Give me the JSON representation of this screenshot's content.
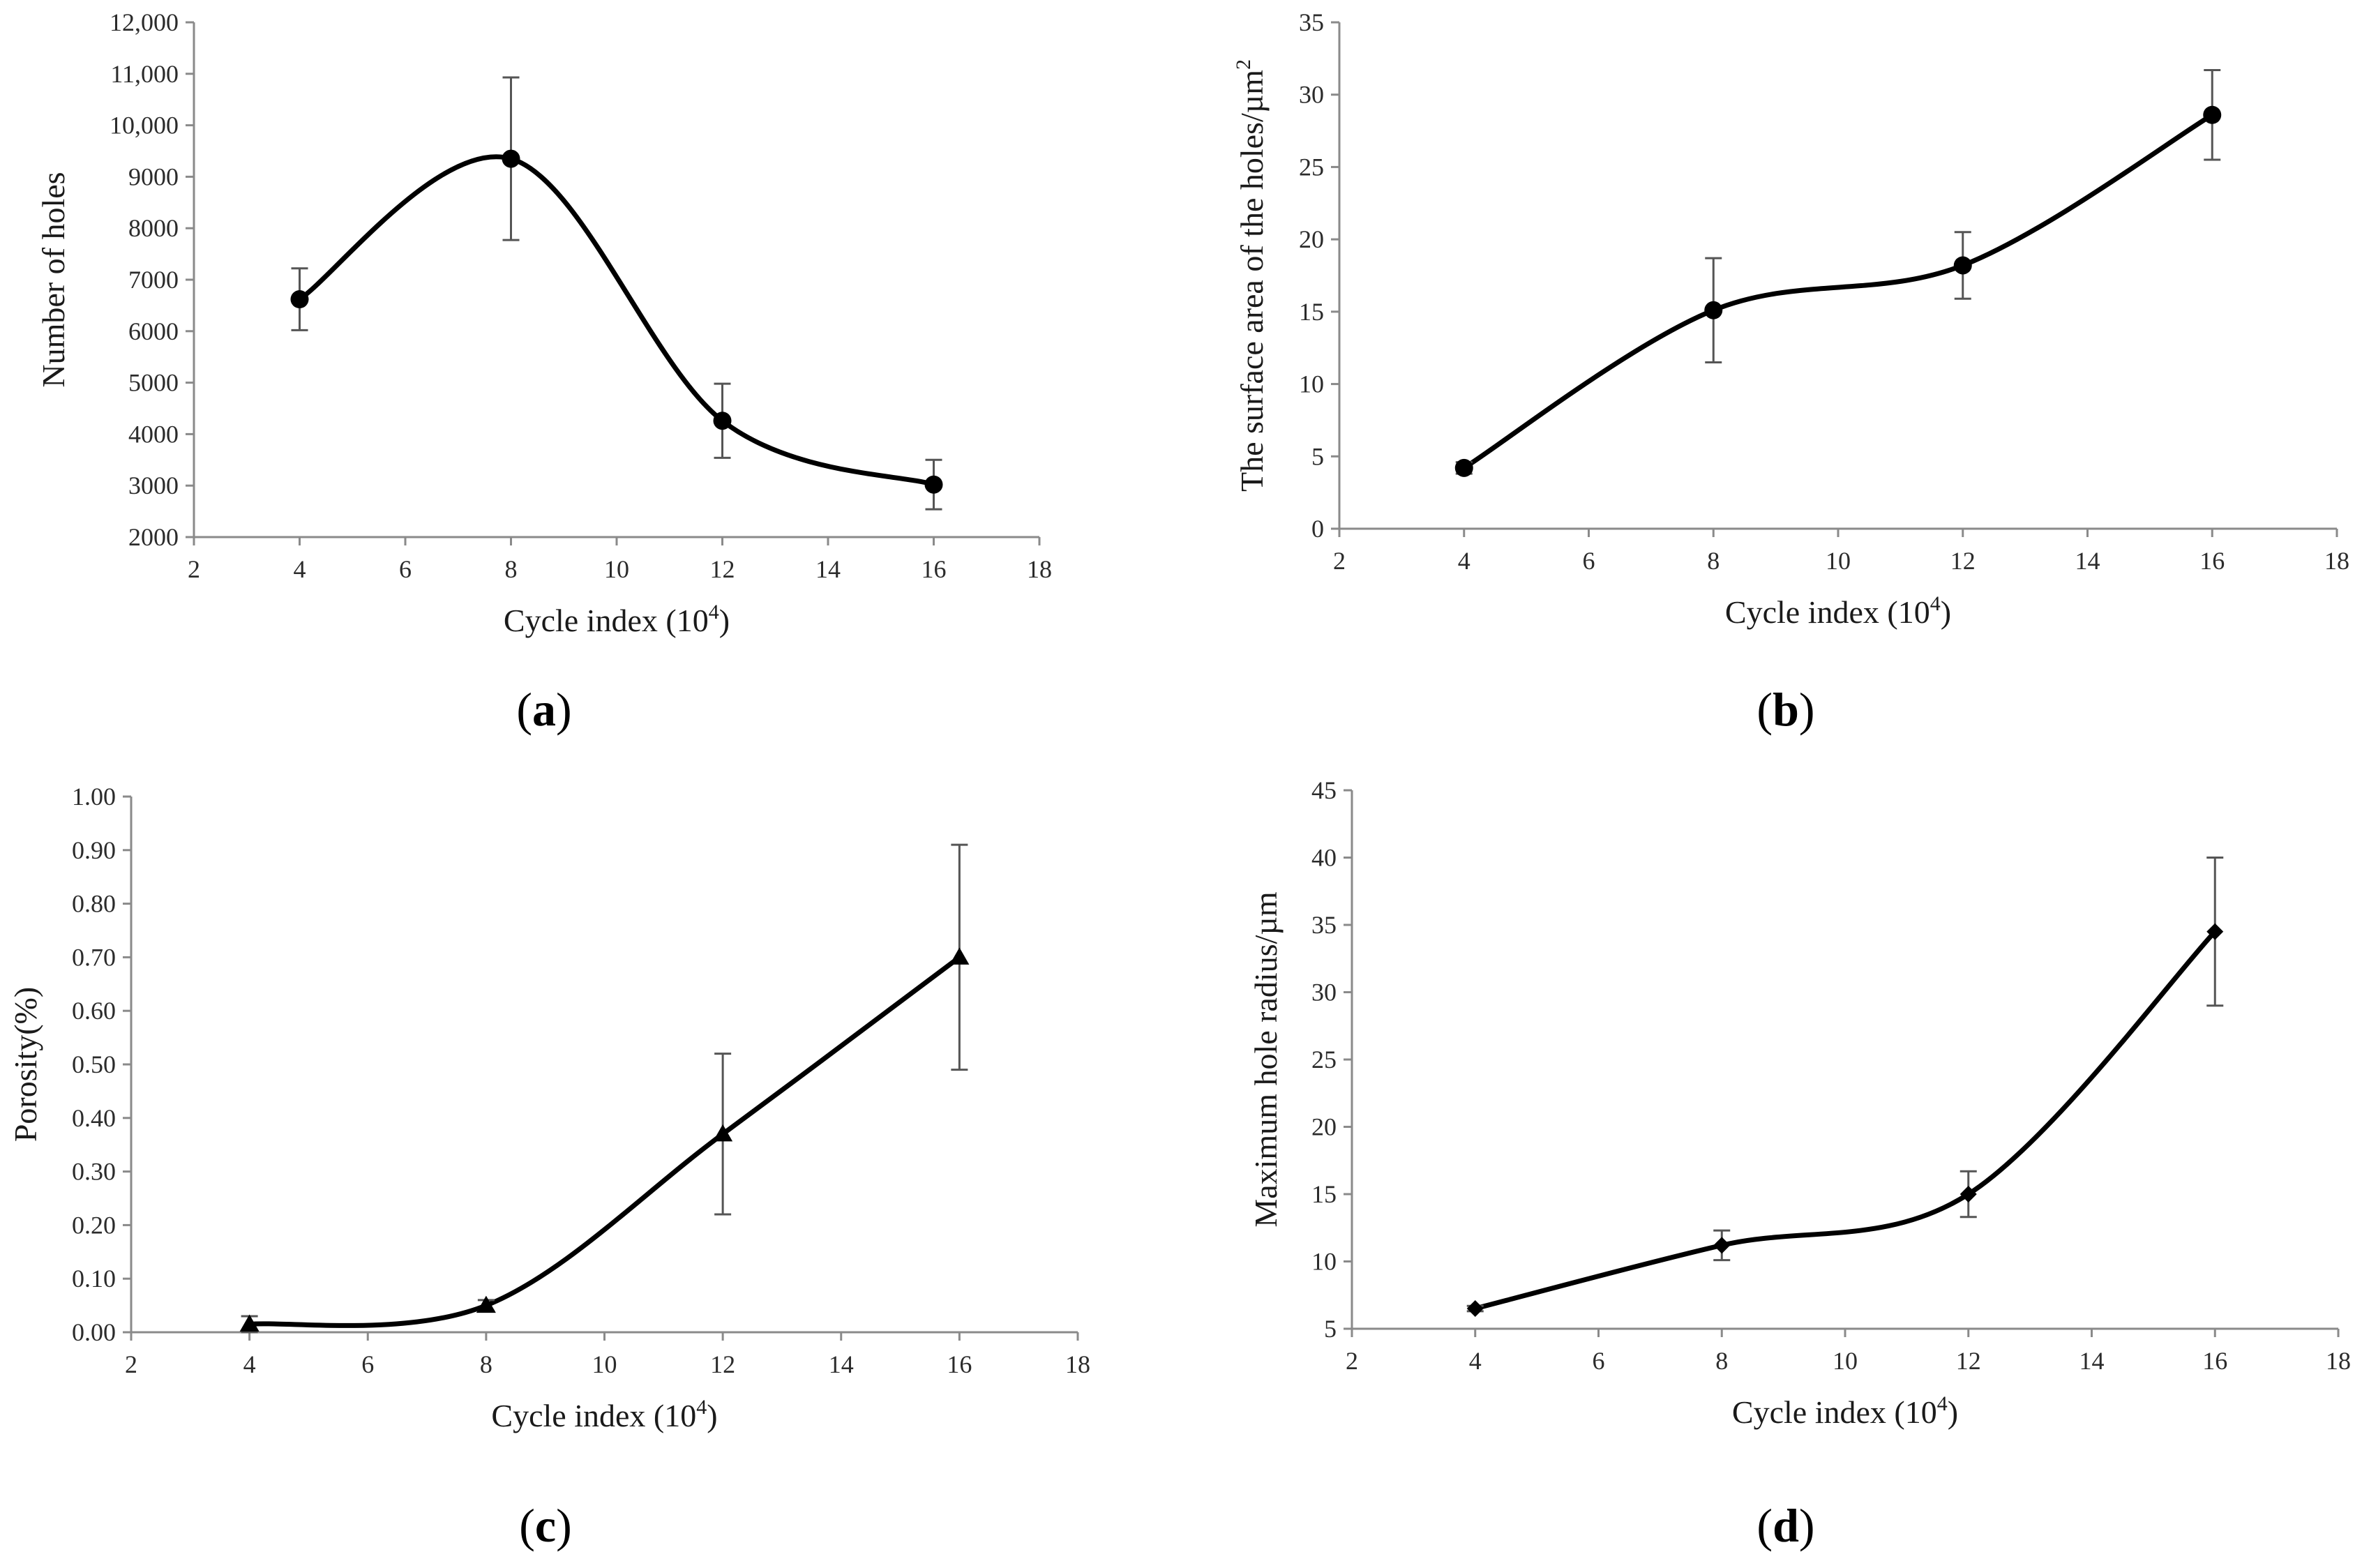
{
  "chart_data": [
    {
      "id": "a",
      "type": "line",
      "panel_label": "a",
      "xlabel": "Cycle index (10",
      "xlabel_sup": "4",
      "xlabel_end": ")",
      "ylabel": "Number of holes",
      "ylabel_sup": "",
      "xlim": [
        2,
        18
      ],
      "ylim": [
        2000,
        12000
      ],
      "xticks": [
        2,
        4,
        6,
        8,
        10,
        12,
        14,
        16,
        18
      ],
      "yticks": [
        2000,
        3000,
        4000,
        5000,
        6000,
        7000,
        8000,
        9000,
        10000,
        11000,
        12000
      ],
      "ytick_labels": [
        "2000",
        "3000",
        "4000",
        "5000",
        "6000",
        "7000",
        "8000",
        "9000",
        "10,000",
        "11,000",
        "12,000"
      ],
      "marker": "circle",
      "series": [
        {
          "name": "Number of holes",
          "x": [
            4,
            8,
            12,
            16
          ],
          "y": [
            6620,
            9350,
            4260,
            3020
          ],
          "err": [
            600,
            1580,
            720,
            480
          ]
        }
      ]
    },
    {
      "id": "b",
      "type": "line",
      "panel_label": "b",
      "xlabel": "Cycle index (10",
      "xlabel_sup": "4",
      "xlabel_end": ")",
      "ylabel": "The surface area of the holes/µm",
      "ylabel_sup": "2",
      "xlim": [
        2,
        18
      ],
      "ylim": [
        0,
        35
      ],
      "xticks": [
        2,
        4,
        6,
        8,
        10,
        12,
        14,
        16,
        18
      ],
      "yticks": [
        0,
        5,
        10,
        15,
        20,
        25,
        30,
        35
      ],
      "ytick_labels": [
        "0",
        "5",
        "10",
        "15",
        "20",
        "25",
        "30",
        "35"
      ],
      "marker": "circle",
      "series": [
        {
          "name": "Surface area",
          "x": [
            4,
            8,
            12,
            16
          ],
          "y": [
            4.2,
            15.1,
            18.2,
            28.6
          ],
          "err": [
            0.4,
            3.6,
            2.3,
            3.1
          ]
        }
      ]
    },
    {
      "id": "c",
      "type": "line",
      "panel_label": "c",
      "xlabel": "Cycle index (10",
      "xlabel_sup": "4",
      "xlabel_end": ")",
      "ylabel": "Porosity(%)",
      "ylabel_sup": "",
      "xlim": [
        2,
        18
      ],
      "ylim": [
        0,
        1.0
      ],
      "xticks": [
        2,
        4,
        6,
        8,
        10,
        12,
        14,
        16,
        18
      ],
      "yticks": [
        0,
        0.1,
        0.2,
        0.3,
        0.4,
        0.5,
        0.6,
        0.7,
        0.8,
        0.9,
        1.0
      ],
      "ytick_labels": [
        "0.00",
        "0.10",
        "0.20",
        "0.30",
        "0.40",
        "0.50",
        "0.60",
        "0.70",
        "0.80",
        "0.90",
        "1.00"
      ],
      "marker": "triangle",
      "series": [
        {
          "name": "Porosity",
          "x": [
            4,
            8,
            12,
            16
          ],
          "y": [
            0.015,
            0.05,
            0.37,
            0.7
          ],
          "err": [
            0.015,
            0.01,
            0.15,
            0.21
          ]
        }
      ]
    },
    {
      "id": "d",
      "type": "line",
      "panel_label": "d",
      "xlabel": "Cycle index (10",
      "xlabel_sup": "4",
      "xlabel_end": ")",
      "ylabel": "Maximum hole radius/µm",
      "ylabel_sup": "",
      "xlim": [
        2,
        18
      ],
      "ylim": [
        5,
        45
      ],
      "xticks": [
        2,
        4,
        6,
        8,
        10,
        12,
        14,
        16,
        18
      ],
      "yticks": [
        5,
        10,
        15,
        20,
        25,
        30,
        35,
        40,
        45
      ],
      "ytick_labels": [
        "5",
        "10",
        "15",
        "20",
        "25",
        "30",
        "35",
        "40",
        "45"
      ],
      "marker": "diamond",
      "series": [
        {
          "name": "Maximum hole radius",
          "x": [
            4,
            8,
            12,
            16
          ],
          "y": [
            6.5,
            11.2,
            15.0,
            34.5
          ],
          "err": [
            0.2,
            1.1,
            1.7,
            5.5
          ]
        }
      ]
    }
  ]
}
